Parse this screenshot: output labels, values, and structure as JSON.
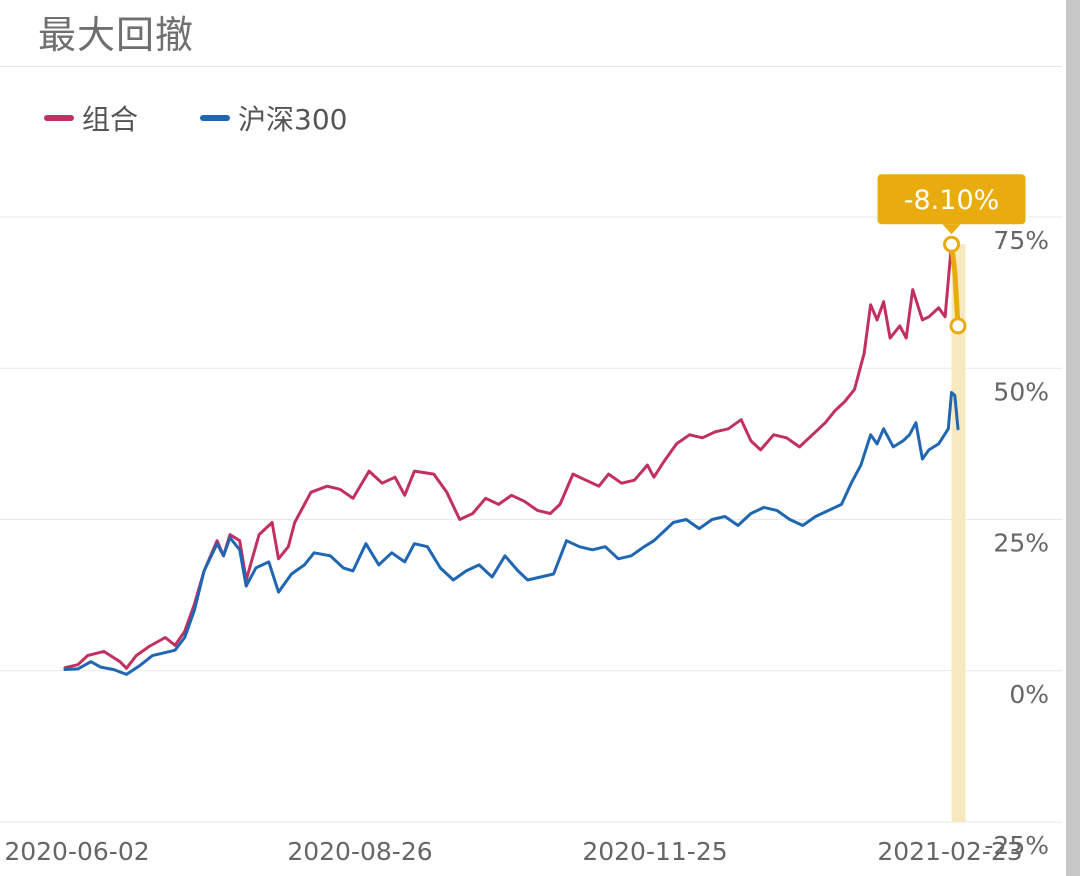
{
  "header": {
    "title": "最大回撤"
  },
  "colors": {
    "portfolio": "#c2305f",
    "benchmark": "#1f66b3",
    "highlight": "#e8ac0e",
    "highlight_band": "#f7e9bf",
    "grid": "#e9e9e9",
    "tick_text": "#666666"
  },
  "chart_data": {
    "type": "line",
    "title": "最大回撤",
    "xlabel": "",
    "ylabel": "",
    "x_ticks": [
      "2020-06-02",
      "2020-08-26",
      "2020-11-25",
      "2021-02-23"
    ],
    "y_ticks": [
      "75%",
      "50%",
      "25%",
      "0%",
      "-25%"
    ],
    "ylim": [
      -25,
      75
    ],
    "grid": true,
    "legend_position": "top-left",
    "x_range": [
      "2020-05-29",
      "2021-03-01"
    ],
    "series": [
      {
        "name": "组合",
        "points": [
          [
            "2020-05-29",
            0.5
          ],
          [
            "2020-06-02",
            1.0
          ],
          [
            "2020-06-05",
            2.5
          ],
          [
            "2020-06-10",
            3.2
          ],
          [
            "2020-06-15",
            1.5
          ],
          [
            "2020-06-17",
            0.4
          ],
          [
            "2020-06-20",
            2.5
          ],
          [
            "2020-06-24",
            4.0
          ],
          [
            "2020-06-29",
            5.5
          ],
          [
            "2020-07-02",
            4.2
          ],
          [
            "2020-07-05",
            6.5
          ],
          [
            "2020-07-08",
            11.0
          ],
          [
            "2020-07-11",
            16.5
          ],
          [
            "2020-07-15",
            21.5
          ],
          [
            "2020-07-17",
            19.0
          ],
          [
            "2020-07-19",
            22.5
          ],
          [
            "2020-07-22",
            21.5
          ],
          [
            "2020-07-24",
            15.0
          ],
          [
            "2020-07-28",
            22.5
          ],
          [
            "2020-08-01",
            24.5
          ],
          [
            "2020-08-03",
            18.5
          ],
          [
            "2020-08-06",
            20.5
          ],
          [
            "2020-08-08",
            24.5
          ],
          [
            "2020-08-13",
            29.5
          ],
          [
            "2020-08-18",
            30.5
          ],
          [
            "2020-08-22",
            30.0
          ],
          [
            "2020-08-26",
            28.5
          ],
          [
            "2020-08-31",
            33.0
          ],
          [
            "2020-09-04",
            31.0
          ],
          [
            "2020-09-08",
            32.0
          ],
          [
            "2020-09-11",
            29.0
          ],
          [
            "2020-09-14",
            33.0
          ],
          [
            "2020-09-20",
            32.5
          ],
          [
            "2020-09-24",
            29.5
          ],
          [
            "2020-09-28",
            25.0
          ],
          [
            "2020-10-02",
            26.0
          ],
          [
            "2020-10-06",
            28.5
          ],
          [
            "2020-10-10",
            27.5
          ],
          [
            "2020-10-14",
            29.0
          ],
          [
            "2020-10-18",
            28.0
          ],
          [
            "2020-10-22",
            26.5
          ],
          [
            "2020-10-26",
            26.0
          ],
          [
            "2020-10-29",
            27.5
          ],
          [
            "2020-11-02",
            32.5
          ],
          [
            "2020-11-06",
            31.5
          ],
          [
            "2020-11-10",
            30.5
          ],
          [
            "2020-11-13",
            32.5
          ],
          [
            "2020-11-17",
            31.0
          ],
          [
            "2020-11-21",
            31.5
          ],
          [
            "2020-11-25",
            34.0
          ],
          [
            "2020-11-27",
            32.0
          ],
          [
            "2020-11-30",
            34.5
          ],
          [
            "2020-12-04",
            37.5
          ],
          [
            "2020-12-08",
            39.0
          ],
          [
            "2020-12-12",
            38.5
          ],
          [
            "2020-12-16",
            39.5
          ],
          [
            "2020-12-20",
            40.0
          ],
          [
            "2020-12-24",
            41.5
          ],
          [
            "2020-12-27",
            38.0
          ],
          [
            "2020-12-30",
            36.5
          ],
          [
            "2021-01-03",
            39.0
          ],
          [
            "2021-01-07",
            38.5
          ],
          [
            "2021-01-11",
            37.0
          ],
          [
            "2021-01-15",
            39.0
          ],
          [
            "2021-01-19",
            41.0
          ],
          [
            "2021-01-22",
            43.0
          ],
          [
            "2021-01-25",
            44.5
          ],
          [
            "2021-01-28",
            46.5
          ],
          [
            "2021-01-31",
            52.5
          ],
          [
            "2021-02-02",
            60.5
          ],
          [
            "2021-02-04",
            58.0
          ],
          [
            "2021-02-06",
            61.0
          ],
          [
            "2021-02-08",
            55.0
          ],
          [
            "2021-02-11",
            57.0
          ],
          [
            "2021-02-13",
            55.0
          ],
          [
            "2021-02-15",
            63.0
          ],
          [
            "2021-02-18",
            58.0
          ],
          [
            "2021-02-20",
            58.5
          ],
          [
            "2021-02-23",
            60.0
          ],
          [
            "2021-02-25",
            58.5
          ],
          [
            "2021-02-27",
            70.5
          ]
        ]
      },
      {
        "name": "沪深300",
        "points": [
          [
            "2020-05-29",
            0.2
          ],
          [
            "2020-06-02",
            0.3
          ],
          [
            "2020-06-06",
            1.5
          ],
          [
            "2020-06-09",
            0.6
          ],
          [
            "2020-06-13",
            0.2
          ],
          [
            "2020-06-17",
            -0.6
          ],
          [
            "2020-06-21",
            0.8
          ],
          [
            "2020-06-25",
            2.5
          ],
          [
            "2020-06-29",
            3.0
          ],
          [
            "2020-07-02",
            3.4
          ],
          [
            "2020-07-05",
            5.5
          ],
          [
            "2020-07-08",
            10.0
          ],
          [
            "2020-07-11",
            16.5
          ],
          [
            "2020-07-15",
            21.0
          ],
          [
            "2020-07-17",
            19.0
          ],
          [
            "2020-07-19",
            22.0
          ],
          [
            "2020-07-22",
            20.0
          ],
          [
            "2020-07-24",
            14.0
          ],
          [
            "2020-07-27",
            17.0
          ],
          [
            "2020-07-31",
            18.0
          ],
          [
            "2020-08-03",
            13.0
          ],
          [
            "2020-08-07",
            16.0
          ],
          [
            "2020-08-11",
            17.5
          ],
          [
            "2020-08-14",
            19.5
          ],
          [
            "2020-08-19",
            19.0
          ],
          [
            "2020-08-23",
            17.0
          ],
          [
            "2020-08-26",
            16.5
          ],
          [
            "2020-08-30",
            21.0
          ],
          [
            "2020-09-03",
            17.5
          ],
          [
            "2020-09-07",
            19.5
          ],
          [
            "2020-09-11",
            18.0
          ],
          [
            "2020-09-14",
            21.0
          ],
          [
            "2020-09-18",
            20.5
          ],
          [
            "2020-09-22",
            17.0
          ],
          [
            "2020-09-26",
            15.0
          ],
          [
            "2020-09-30",
            16.5
          ],
          [
            "2020-10-04",
            17.5
          ],
          [
            "2020-10-08",
            15.5
          ],
          [
            "2020-10-12",
            19.0
          ],
          [
            "2020-10-16",
            16.5
          ],
          [
            "2020-10-19",
            15.0
          ],
          [
            "2020-10-23",
            15.5
          ],
          [
            "2020-10-27",
            16.0
          ],
          [
            "2020-10-31",
            21.5
          ],
          [
            "2020-11-04",
            20.5
          ],
          [
            "2020-11-08",
            20.0
          ],
          [
            "2020-11-12",
            20.5
          ],
          [
            "2020-11-16",
            18.5
          ],
          [
            "2020-11-20",
            19.0
          ],
          [
            "2020-11-24",
            20.5
          ],
          [
            "2020-11-27",
            21.5
          ],
          [
            "2020-11-30",
            23.0
          ],
          [
            "2020-12-03",
            24.5
          ],
          [
            "2020-12-07",
            25.0
          ],
          [
            "2020-12-11",
            23.5
          ],
          [
            "2020-12-15",
            25.0
          ],
          [
            "2020-12-19",
            25.5
          ],
          [
            "2020-12-23",
            24.0
          ],
          [
            "2020-12-27",
            26.0
          ],
          [
            "2020-12-31",
            27.0
          ],
          [
            "2021-01-04",
            26.5
          ],
          [
            "2021-01-08",
            25.0
          ],
          [
            "2021-01-12",
            24.0
          ],
          [
            "2021-01-16",
            25.5
          ],
          [
            "2021-01-20",
            26.5
          ],
          [
            "2021-01-24",
            27.5
          ],
          [
            "2021-01-27",
            31.0
          ],
          [
            "2021-01-30",
            34.0
          ],
          [
            "2021-02-02",
            39.0
          ],
          [
            "2021-02-04",
            37.5
          ],
          [
            "2021-02-06",
            40.0
          ],
          [
            "2021-02-09",
            37.0
          ],
          [
            "2021-02-12",
            38.0
          ],
          [
            "2021-02-14",
            39.0
          ],
          [
            "2021-02-16",
            41.0
          ],
          [
            "2021-02-18",
            35.0
          ],
          [
            "2021-02-20",
            36.5
          ],
          [
            "2021-02-23",
            37.5
          ],
          [
            "2021-02-26",
            40.0
          ],
          [
            "2021-02-27",
            46.0
          ],
          [
            "2021-02-28",
            45.5
          ],
          [
            "2021-03-01",
            40.0
          ]
        ]
      }
    ],
    "drawdown": {
      "label": "-8.10%",
      "value": -8.1,
      "start_date": "2021-02-27",
      "end_date": "2021-03-01",
      "peak": 70.5,
      "trough": 57.0,
      "path": [
        [
          "2021-02-27",
          70.5
        ],
        [
          "2021-02-28",
          66.0
        ],
        [
          "2021-03-01",
          57.0
        ]
      ]
    }
  }
}
